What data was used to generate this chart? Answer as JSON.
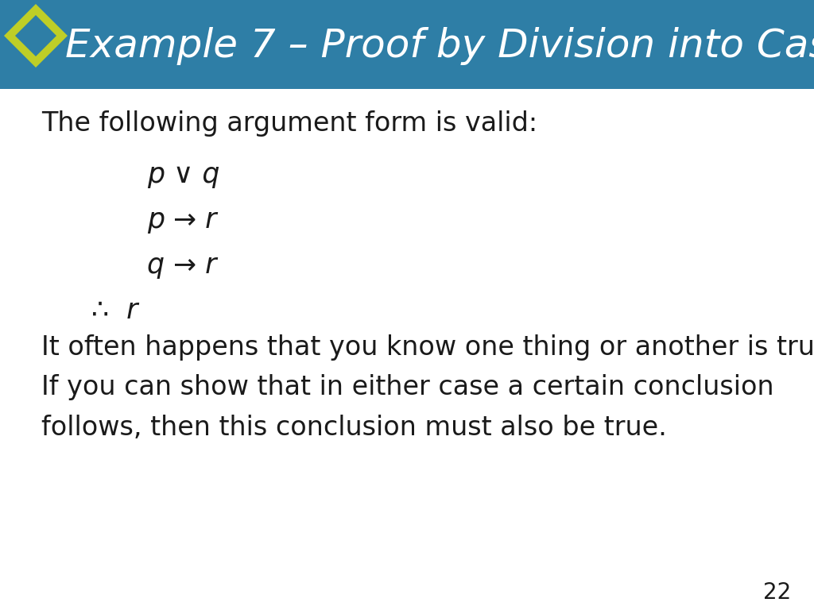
{
  "title_part1": "Example 7 – ",
  "title_part2": "Proof by Division into Cases",
  "title_bg_color": "#2E7EA6",
  "title_text_color": "#FFFFFF",
  "diamond_outer_color": "#BFCE27",
  "diamond_inner_color": "#2E7EA6",
  "bg_color": "#FFFFFF",
  "slide_text_color": "#1a1a1a",
  "intro_text": "The following argument form is valid:",
  "logic_lines": [
    "p ∨ q",
    "p → r",
    "q → r"
  ],
  "conclusion": "∴  r",
  "body_text_line1": "It often happens that you know one thing or another is true.",
  "body_text_line2": "If you can show that in either case a certain conclusion",
  "body_text_line3": "follows, then this conclusion must also be true.",
  "page_number": "22",
  "intro_fontsize": 24,
  "logic_fontsize": 25,
  "body_fontsize": 24,
  "title_fontsize": 36
}
